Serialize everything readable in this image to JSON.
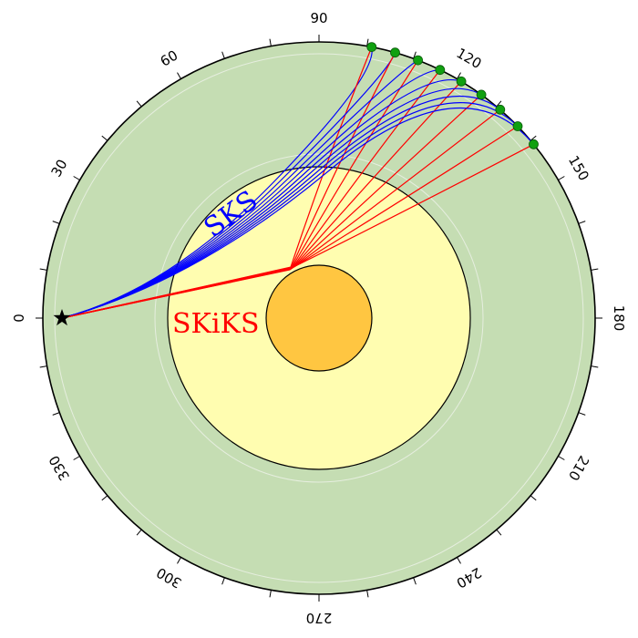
{
  "colors": {
    "mantle": "#c5ddb3",
    "outer_core": "#fffdb0",
    "inner_core": "#ffc641",
    "sks": "#0000ff",
    "skiks": "#ff0000",
    "station": "#10a010",
    "source": "#000000",
    "inner_circle_guides": "#e6eedf"
  },
  "phases": {
    "sks": {
      "label": "SKS"
    },
    "skiks": {
      "label": "SKiKS"
    }
  },
  "source": {
    "icon": "star-icon",
    "azimuth_deg": 0
  },
  "stations": {
    "icon": "circle-icon",
    "azimuths_deg": [
      101,
      106,
      111,
      116,
      121,
      126,
      131,
      136,
      141
    ]
  },
  "tick_labels": [
    {
      "angle": 0,
      "text": "0"
    },
    {
      "angle": 30,
      "text": "30"
    },
    {
      "angle": 60,
      "text": "60"
    },
    {
      "angle": 90,
      "text": "90"
    },
    {
      "angle": 120,
      "text": "120"
    },
    {
      "angle": 150,
      "text": "150"
    },
    {
      "angle": 180,
      "text": "180"
    },
    {
      "angle": 210,
      "text": "210"
    },
    {
      "angle": 240,
      "text": "240"
    },
    {
      "angle": 270,
      "text": "270"
    },
    {
      "angle": 300,
      "text": "300"
    },
    {
      "angle": 330,
      "text": "330"
    }
  ],
  "minor_tick_step_deg": 10
}
